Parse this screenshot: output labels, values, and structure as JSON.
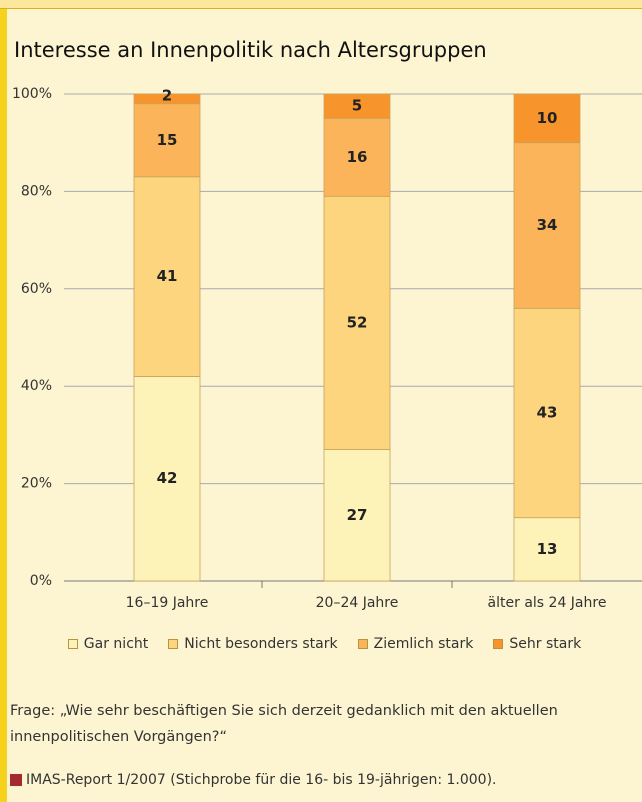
{
  "chart_data": {
    "type": "stacked_bar",
    "title": "Interesse an Innenpolitik nach Altersgruppen",
    "categories": [
      "16–19 Jahre",
      "20–24 Jahre",
      "älter als 24 Jahre"
    ],
    "series": [
      {
        "name": "Gar nicht",
        "color": "#fdf3b8",
        "values": [
          42,
          27,
          13
        ]
      },
      {
        "name": "Nicht besonders stark",
        "color": "#fdd57e",
        "values": [
          41,
          52,
          43
        ]
      },
      {
        "name": "Ziemlich stark",
        "color": "#fbb45a",
        "values": [
          15,
          16,
          34
        ]
      },
      {
        "name": "Sehr stark",
        "color": "#f7942b",
        "values": [
          2,
          5,
          10
        ]
      }
    ],
    "ylim": [
      0,
      100
    ],
    "yticks": [
      {
        "value": 0,
        "label": "0%"
      },
      {
        "value": 20,
        "label": "20%"
      },
      {
        "value": 40,
        "label": "40%"
      },
      {
        "value": 60,
        "label": "60%"
      },
      {
        "value": 80,
        "label": "80%"
      },
      {
        "value": 100,
        "label": "100%"
      }
    ],
    "grid": true,
    "legend": "bottom",
    "note": "Frage: „Wie sehr beschäftigen Sie sich derzeit gedanklich mit den aktuellen innenpolitischen Vorgängen?“",
    "source": "IMAS-Report 1/2007 (Stichprobe für die 16- bis 19-jährigen: 1.000)."
  }
}
